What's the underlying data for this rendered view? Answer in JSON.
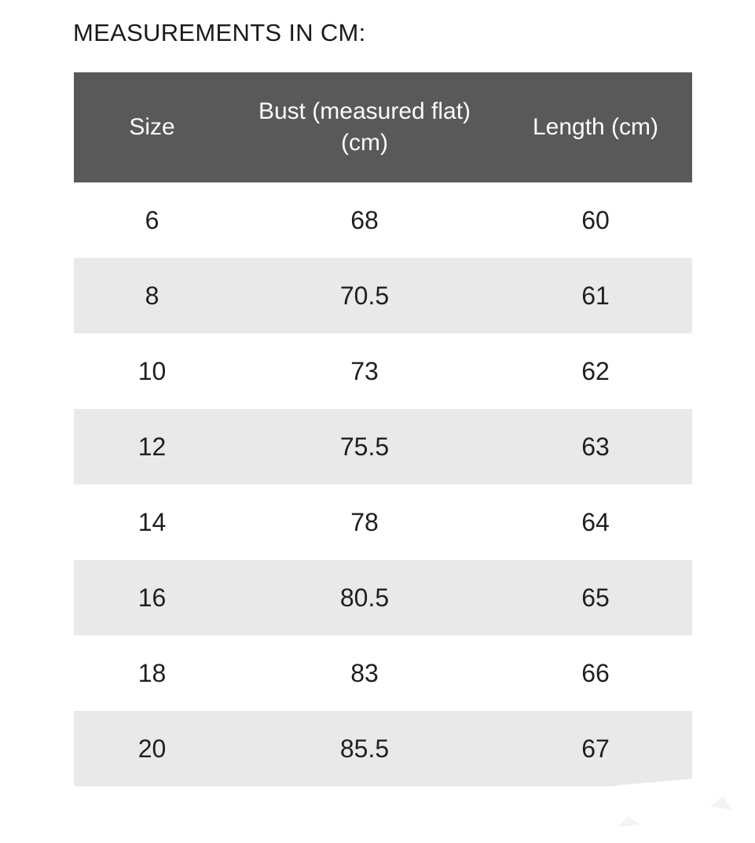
{
  "page": {
    "title": "MEASUREMENTS IN CM:"
  },
  "colors": {
    "page_bg": "#ffffff",
    "title_text": "#1a1a1a",
    "header_bg": "#595959",
    "header_text": "#fcfcfc",
    "stripe_bg": "#e9e9e9",
    "text": "#1f1f1f"
  },
  "table": {
    "columns": [
      {
        "id": "size",
        "label": "Size",
        "label_lines": [
          "Size"
        ]
      },
      {
        "id": "bust",
        "label": "Bust (measured flat) (cm)",
        "label_lines": [
          "Bust (measured flat)",
          "(cm)"
        ]
      },
      {
        "id": "length",
        "label": "Length (cm)",
        "label_lines": [
          "Length (cm)"
        ]
      }
    ],
    "rows": [
      {
        "size": "6",
        "bust": "68",
        "length": "60"
      },
      {
        "size": "8",
        "bust": "70.5",
        "length": "61"
      },
      {
        "size": "10",
        "bust": "73",
        "length": "62"
      },
      {
        "size": "12",
        "bust": "75.5",
        "length": "63"
      },
      {
        "size": "14",
        "bust": "78",
        "length": "64"
      },
      {
        "size": "16",
        "bust": "80.5",
        "length": "65"
      },
      {
        "size": "18",
        "bust": "83",
        "length": "66"
      },
      {
        "size": "20",
        "bust": "85.5",
        "length": "67"
      }
    ]
  },
  "chart_data": {
    "type": "table",
    "title": "MEASUREMENTS IN CM:",
    "columns": [
      "Size",
      "Bust (measured flat) (cm)",
      "Length (cm)"
    ],
    "rows": [
      [
        6,
        68,
        60
      ],
      [
        8,
        70.5,
        61
      ],
      [
        10,
        73,
        62
      ],
      [
        12,
        75.5,
        63
      ],
      [
        14,
        78,
        64
      ],
      [
        16,
        80.5,
        65
      ],
      [
        18,
        83,
        66
      ],
      [
        20,
        85.5,
        67
      ]
    ]
  }
}
